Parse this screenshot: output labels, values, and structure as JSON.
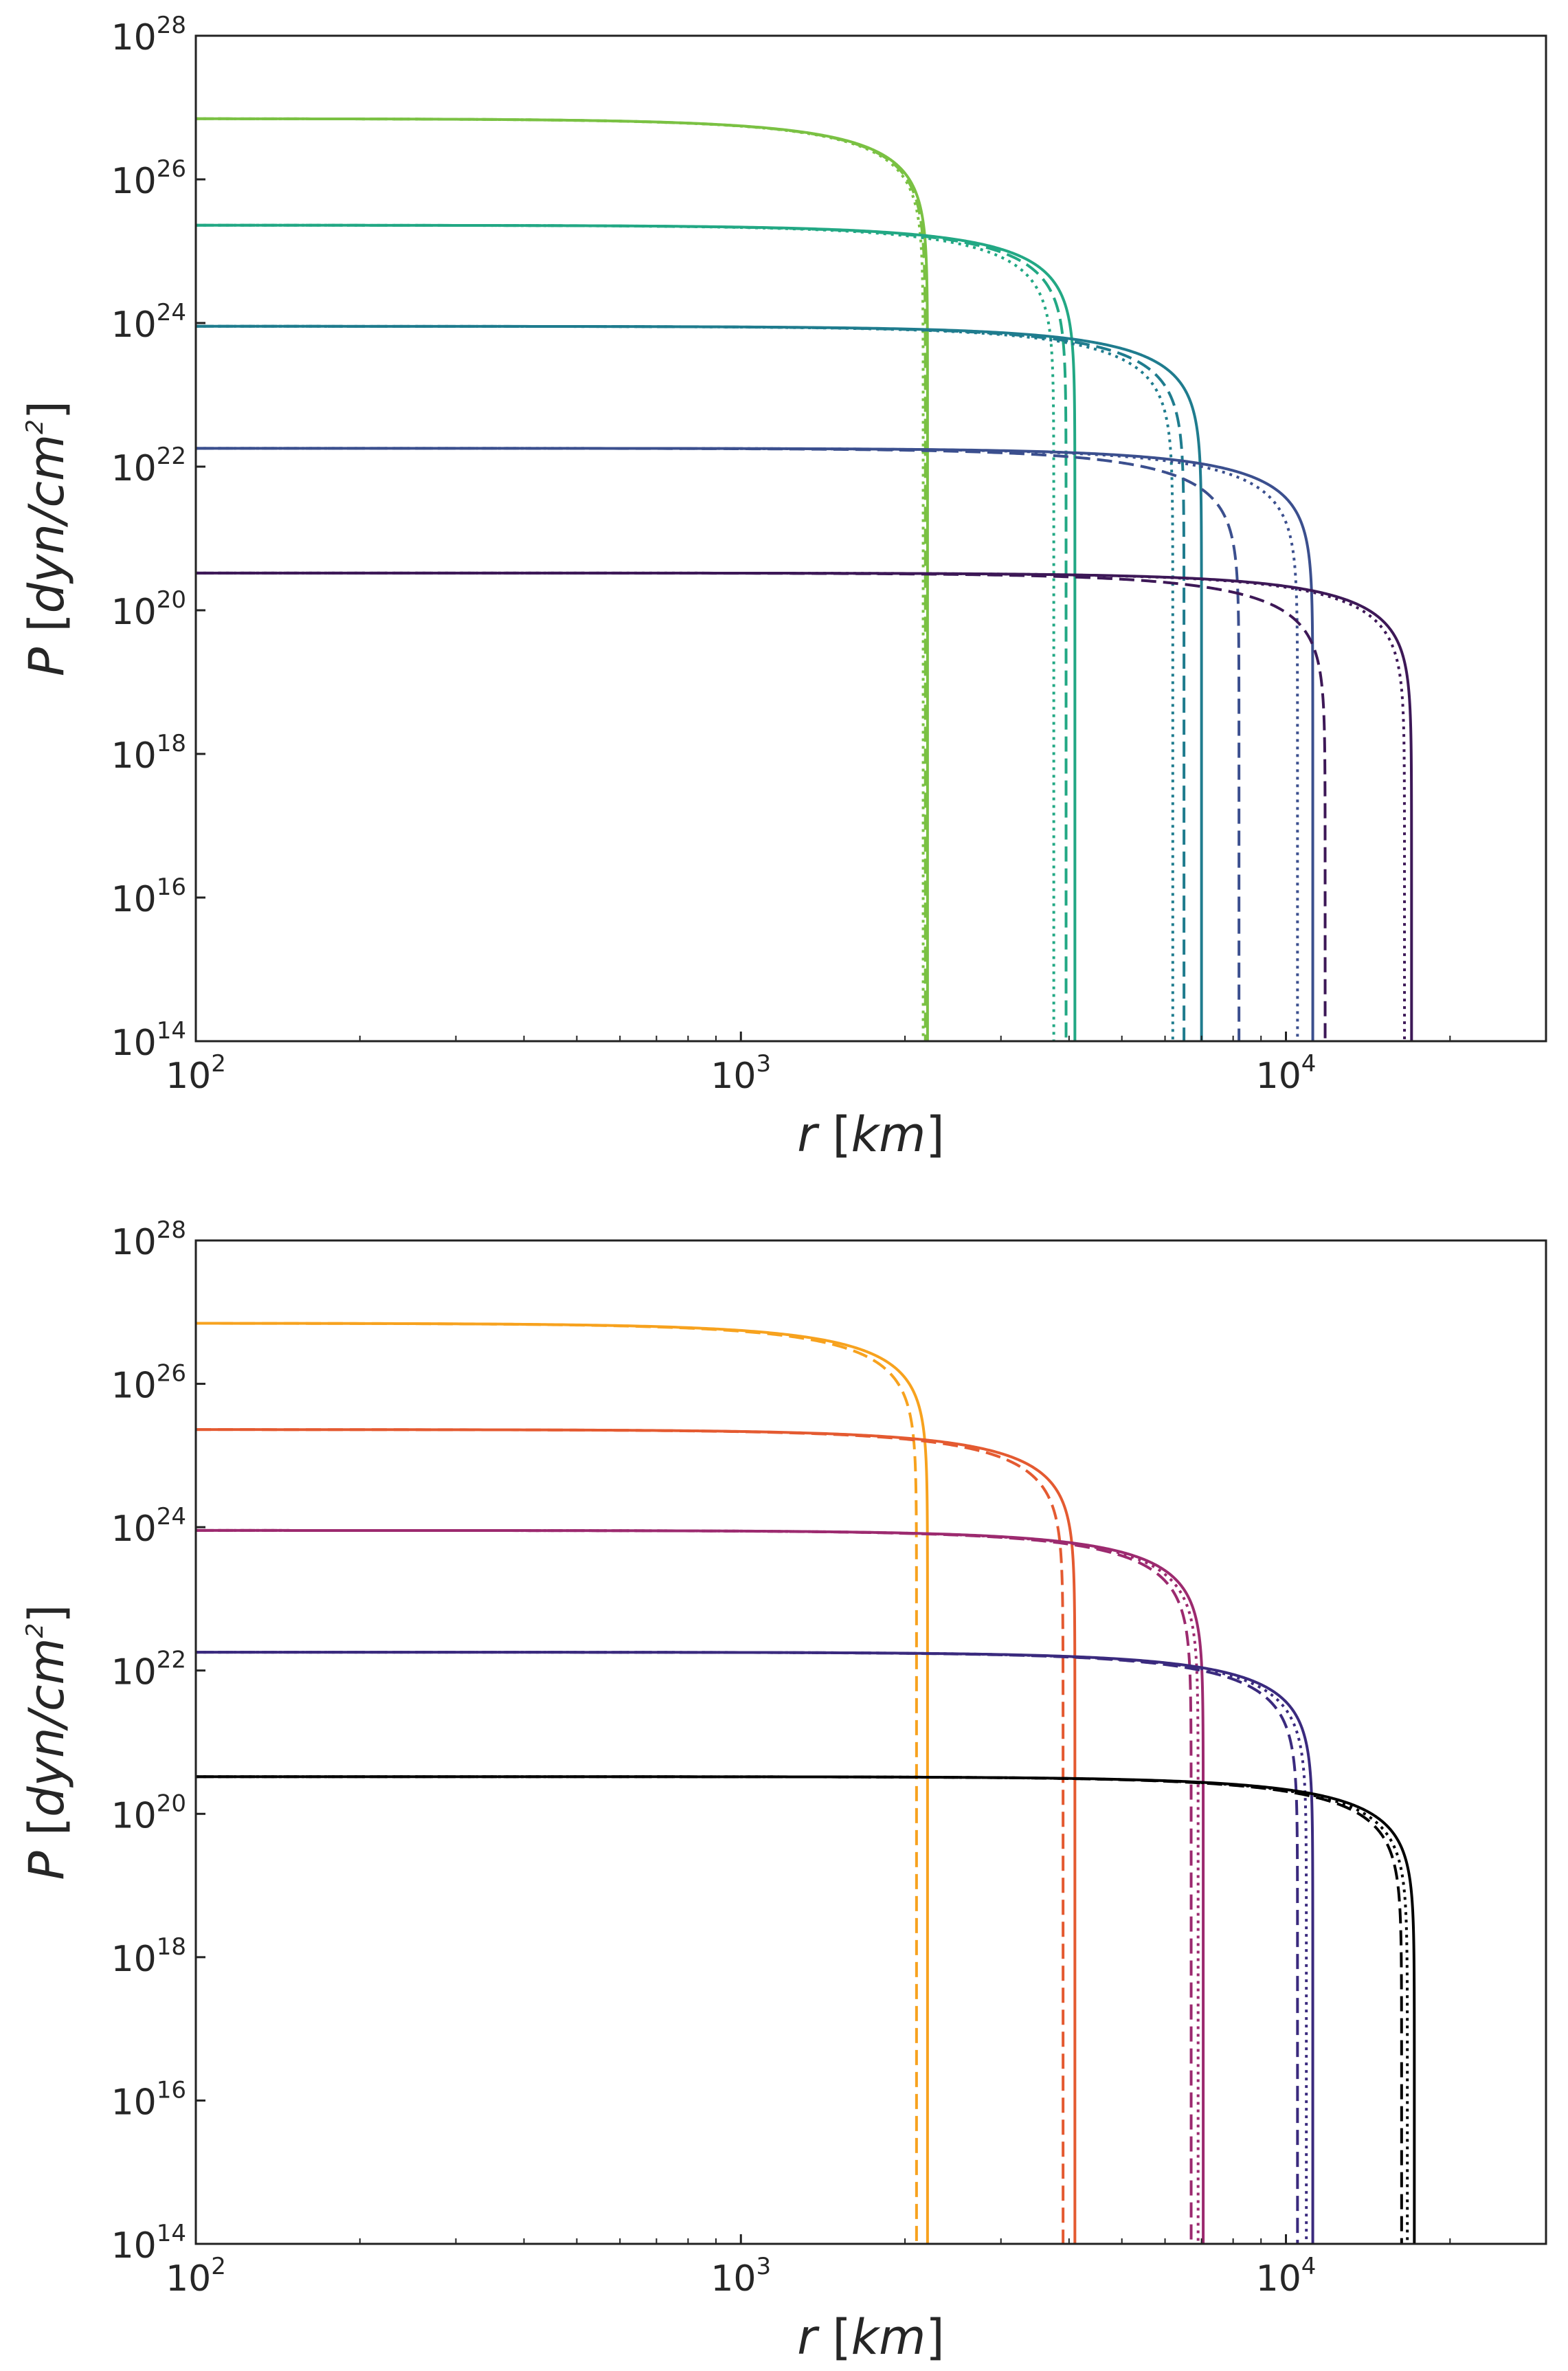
{
  "chart_data": [
    {
      "type": "line",
      "panel": "top",
      "title": "",
      "xlabel": {
        "var": "r",
        "unit": "km"
      },
      "ylabel": {
        "var": "P",
        "unit": "dyn/cm",
        "unit_exp": "2"
      },
      "x_scale": "log",
      "y_scale": "log",
      "xlim": [
        100,
        30000
      ],
      "ylim": [
        100000000000000.0,
        1e+28
      ],
      "grid": false,
      "x_ticks": [
        {
          "value": 100,
          "base": "10",
          "exp": "2"
        },
        {
          "value": 1000,
          "base": "10",
          "exp": "3"
        },
        {
          "value": 10000,
          "base": "10",
          "exp": "4"
        }
      ],
      "y_ticks": [
        {
          "value": 100000000000000.0,
          "base": "10",
          "exp": "14"
        },
        {
          "value": 1e+16,
          "base": "10",
          "exp": "16"
        },
        {
          "value": 1e+18,
          "base": "10",
          "exp": "18"
        },
        {
          "value": 1e+20,
          "base": "10",
          "exp": "20"
        },
        {
          "value": 1e+22,
          "base": "10",
          "exp": "22"
        },
        {
          "value": 1e+24,
          "base": "10",
          "exp": "24"
        },
        {
          "value": 1e+26,
          "base": "10",
          "exp": "26"
        },
        {
          "value": 1e+28,
          "base": "10",
          "exp": "28"
        }
      ],
      "series": [
        {
          "color": "#7ac143",
          "style": "solid",
          "P0": 7e+26,
          "R": 2200,
          "shape": 2.0
        },
        {
          "color": "#7ac143",
          "style": "dashed",
          "P0": 7e+26,
          "R": 2180,
          "shape": 2.0
        },
        {
          "color": "#7ac143",
          "style": "dotted",
          "P0": 7e+26,
          "R": 2160,
          "shape": 2.0
        },
        {
          "color": "#22a884",
          "style": "solid",
          "P0": 2.3e+25,
          "R": 4100,
          "shape": 2.0
        },
        {
          "color": "#22a884",
          "style": "dashed",
          "P0": 2.3e+25,
          "R": 3950,
          "shape": 2.0
        },
        {
          "color": "#22a884",
          "style": "dotted",
          "P0": 2.3e+25,
          "R": 3750,
          "shape": 2.0
        },
        {
          "color": "#1f7c8e",
          "style": "solid",
          "P0": 9e+23,
          "R": 7000,
          "shape": 2.0
        },
        {
          "color": "#1f7c8e",
          "style": "dashed",
          "P0": 9e+23,
          "R": 6500,
          "shape": 2.0
        },
        {
          "color": "#1f7c8e",
          "style": "dotted",
          "P0": 9e+23,
          "R": 6200,
          "shape": 2.0
        },
        {
          "color": "#3b4f8e",
          "style": "solid",
          "P0": 1.8e+22,
          "R": 11200,
          "shape": 2.0
        },
        {
          "color": "#3b4f8e",
          "style": "dashed",
          "P0": 1.8e+22,
          "R": 8200,
          "shape": 2.0
        },
        {
          "color": "#3b4f8e",
          "style": "dotted",
          "P0": 1.8e+22,
          "R": 10500,
          "shape": 2.0
        },
        {
          "color": "#3d1857",
          "style": "solid",
          "P0": 3.3e+20,
          "R": 17000,
          "shape": 2.0
        },
        {
          "color": "#3d1857",
          "style": "dashed",
          "P0": 3.3e+20,
          "R": 11800,
          "shape": 2.0
        },
        {
          "color": "#3d1857",
          "style": "dotted",
          "P0": 3.3e+20,
          "R": 16500,
          "shape": 2.0
        }
      ]
    },
    {
      "type": "line",
      "panel": "bottom",
      "title": "",
      "xlabel": {
        "var": "r",
        "unit": "km"
      },
      "ylabel": {
        "var": "P",
        "unit": "dyn/cm",
        "unit_exp": "2"
      },
      "x_scale": "log",
      "y_scale": "log",
      "xlim": [
        100,
        30000
      ],
      "ylim": [
        100000000000000.0,
        1e+28
      ],
      "grid": false,
      "x_ticks": [
        {
          "value": 100,
          "base": "10",
          "exp": "2"
        },
        {
          "value": 1000,
          "base": "10",
          "exp": "3"
        },
        {
          "value": 10000,
          "base": "10",
          "exp": "4"
        }
      ],
      "y_ticks": [
        {
          "value": 100000000000000.0,
          "base": "10",
          "exp": "14"
        },
        {
          "value": 1e+16,
          "base": "10",
          "exp": "16"
        },
        {
          "value": 1e+18,
          "base": "10",
          "exp": "18"
        },
        {
          "value": 1e+20,
          "base": "10",
          "exp": "20"
        },
        {
          "value": 1e+22,
          "base": "10",
          "exp": "22"
        },
        {
          "value": 1e+24,
          "base": "10",
          "exp": "24"
        },
        {
          "value": 1e+26,
          "base": "10",
          "exp": "26"
        },
        {
          "value": 1e+28,
          "base": "10",
          "exp": "28"
        }
      ],
      "series": [
        {
          "color": "#f7a21e",
          "style": "solid",
          "P0": 7e+26,
          "R": 2200,
          "shape": 2.0
        },
        {
          "color": "#f7a21e",
          "style": "dashed",
          "P0": 7e+26,
          "R": 2100,
          "shape": 2.0
        },
        {
          "color": "#e45a31",
          "style": "solid",
          "P0": 2.3e+25,
          "R": 4100,
          "shape": 2.0
        },
        {
          "color": "#e45a31",
          "style": "dashed",
          "P0": 2.3e+25,
          "R": 3900,
          "shape": 2.0
        },
        {
          "color": "#9c2a6f",
          "style": "solid",
          "P0": 9e+23,
          "R": 7050,
          "shape": 2.0
        },
        {
          "color": "#9c2a6f",
          "style": "dashed",
          "P0": 9e+23,
          "R": 6700,
          "shape": 2.0
        },
        {
          "color": "#9c2a6f",
          "style": "dotted",
          "P0": 9e+23,
          "R": 6900,
          "shape": 2.0
        },
        {
          "color": "#3a2a7e",
          "style": "solid",
          "P0": 1.8e+22,
          "R": 11200,
          "shape": 2.0
        },
        {
          "color": "#3a2a7e",
          "style": "dashed",
          "P0": 1.8e+22,
          "R": 10500,
          "shape": 2.0
        },
        {
          "color": "#3a2a7e",
          "style": "dotted",
          "P0": 1.8e+22,
          "R": 10900,
          "shape": 2.0
        },
        {
          "color": "#000000",
          "style": "solid",
          "P0": 3.3e+20,
          "R": 17200,
          "shape": 2.0
        },
        {
          "color": "#000000",
          "style": "dashed",
          "P0": 3.3e+20,
          "R": 16300,
          "shape": 2.0
        },
        {
          "color": "#000000",
          "style": "dotted",
          "P0": 3.3e+20,
          "R": 16700,
          "shape": 2.0
        }
      ]
    }
  ]
}
